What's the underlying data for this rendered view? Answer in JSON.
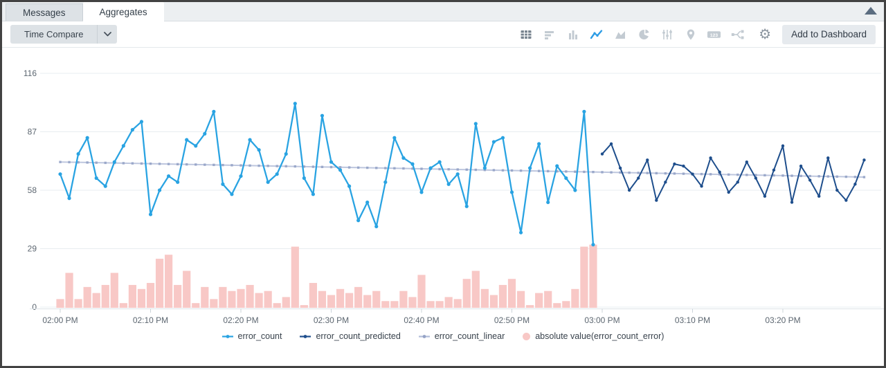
{
  "tabs": [
    {
      "label": "Messages",
      "active": false
    },
    {
      "label": "Aggregates",
      "active": true
    }
  ],
  "toolbar": {
    "time_compare_label": "Time Compare",
    "add_to_dashboard_label": "Add to Dashboard",
    "chart_type_icons": [
      "table",
      "bar-horizontal",
      "column",
      "line",
      "area",
      "pie",
      "sliders",
      "map-pin",
      "single-value",
      "flow"
    ],
    "selected_chart_type": "line",
    "gear_glyph": "⚙"
  },
  "chart_data": {
    "type": "line",
    "title": "",
    "grid": true,
    "legend_position": "bottom",
    "x_axis": {
      "ticks": [
        "02:00 PM",
        "02:10 PM",
        "02:20 PM",
        "02:30 PM",
        "02:40 PM",
        "02:50 PM",
        "03:00 PM",
        "03:10 PM",
        "03:20 PM"
      ],
      "tick_interval_minutes": 10
    },
    "y_axis": {
      "ticks": [
        0,
        29,
        58,
        87,
        116
      ],
      "range": [
        0,
        116
      ]
    },
    "series": [
      {
        "name": "error_count",
        "type": "line",
        "color": "#29a3e2",
        "start_minute": 0,
        "values": [
          66,
          54,
          76,
          84,
          64,
          60,
          72,
          80,
          88,
          92,
          46,
          58,
          65,
          62,
          83,
          80,
          86,
          97,
          61,
          56,
          65,
          83,
          78,
          62,
          66,
          76,
          101,
          64,
          56,
          95,
          72,
          68,
          60,
          43,
          52,
          40,
          62,
          84,
          74,
          71,
          57,
          69,
          72,
          61,
          66,
          50,
          91,
          69,
          82,
          84,
          57,
          37,
          69,
          81,
          52,
          70,
          64,
          58,
          97,
          31
        ]
      },
      {
        "name": "error_count_predicted",
        "type": "line",
        "color": "#1e4e8c",
        "start_minute": 60,
        "values": [
          76,
          81,
          69,
          58,
          64,
          73,
          53,
          62,
          71,
          70,
          66,
          60,
          74,
          67,
          57,
          62,
          72,
          64,
          55,
          68,
          80,
          52,
          70,
          63,
          55,
          74,
          58,
          53,
          61,
          73
        ]
      },
      {
        "name": "error_count_linear",
        "type": "trendline",
        "color": "#b1bcd8",
        "marker_color": "#95a3c6",
        "start_minute": 0,
        "end_minute": 89,
        "start_value": 72,
        "end_value": 64.5
      },
      {
        "name": "absolute value(error_count_error)",
        "type": "bar",
        "color": "#f8c8c6",
        "start_minute": 0,
        "values": [
          4,
          17,
          4,
          10,
          7,
          11,
          17,
          2,
          11,
          9,
          12,
          24,
          26,
          11,
          18,
          2,
          10,
          4,
          10,
          8,
          9,
          11,
          7,
          8,
          2,
          5,
          30,
          1,
          12,
          8,
          6,
          9,
          7,
          10,
          6,
          8,
          3,
          3,
          8,
          5,
          16,
          3,
          3,
          5,
          4,
          14,
          18,
          9,
          6,
          11,
          14,
          8,
          1,
          7,
          8,
          2,
          3,
          9,
          30,
          31
        ]
      }
    ]
  }
}
